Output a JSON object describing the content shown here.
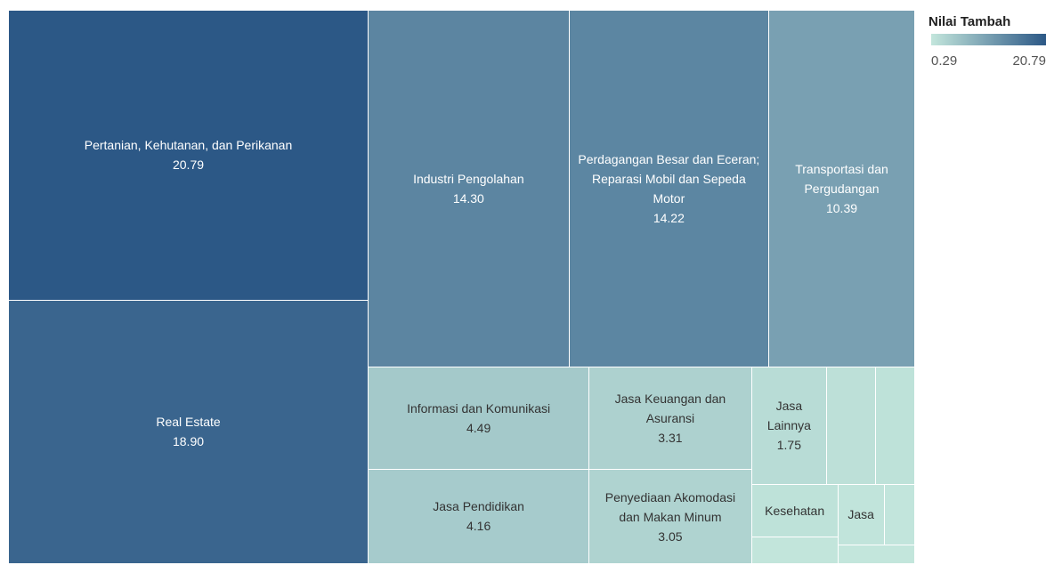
{
  "chart_data": {
    "type": "treemap",
    "categories": [
      "Pertanian, Kehutanan, dan Perikanan",
      "Real Estate",
      "Industri Pengolahan",
      "Perdagangan Besar dan Eceran; Reparasi Mobil dan Sepeda Motor",
      "Transportasi dan Pergudangan",
      "Informasi dan Komunikasi",
      "Jasa Keuangan dan Asuransi",
      "Jasa Lainnya",
      "Jasa Pendidikan",
      "Penyediaan Akomodasi dan Makan Minum",
      "Kesehatan",
      "Jasa",
      null,
      null,
      null,
      null,
      null
    ],
    "values": [
      20.79,
      18.9,
      14.3,
      14.22,
      10.39,
      4.49,
      3.31,
      1.75,
      4.16,
      3.05,
      0.91,
      0.56,
      1.13,
      0.92,
      0.46,
      0.37,
      0.29
    ],
    "value_labels": [
      "20.79",
      "18.90",
      "14.30",
      "14.22",
      "10.39",
      "4.49",
      "3.31",
      "1.75",
      "4.16",
      "3.05",
      null,
      null,
      null,
      null,
      null,
      null,
      null
    ],
    "legend": {
      "title": "Nilai Tambah",
      "min": 0.29,
      "max": 20.79,
      "colors": [
        "#c3e6dc",
        "#2c5886"
      ]
    }
  }
}
